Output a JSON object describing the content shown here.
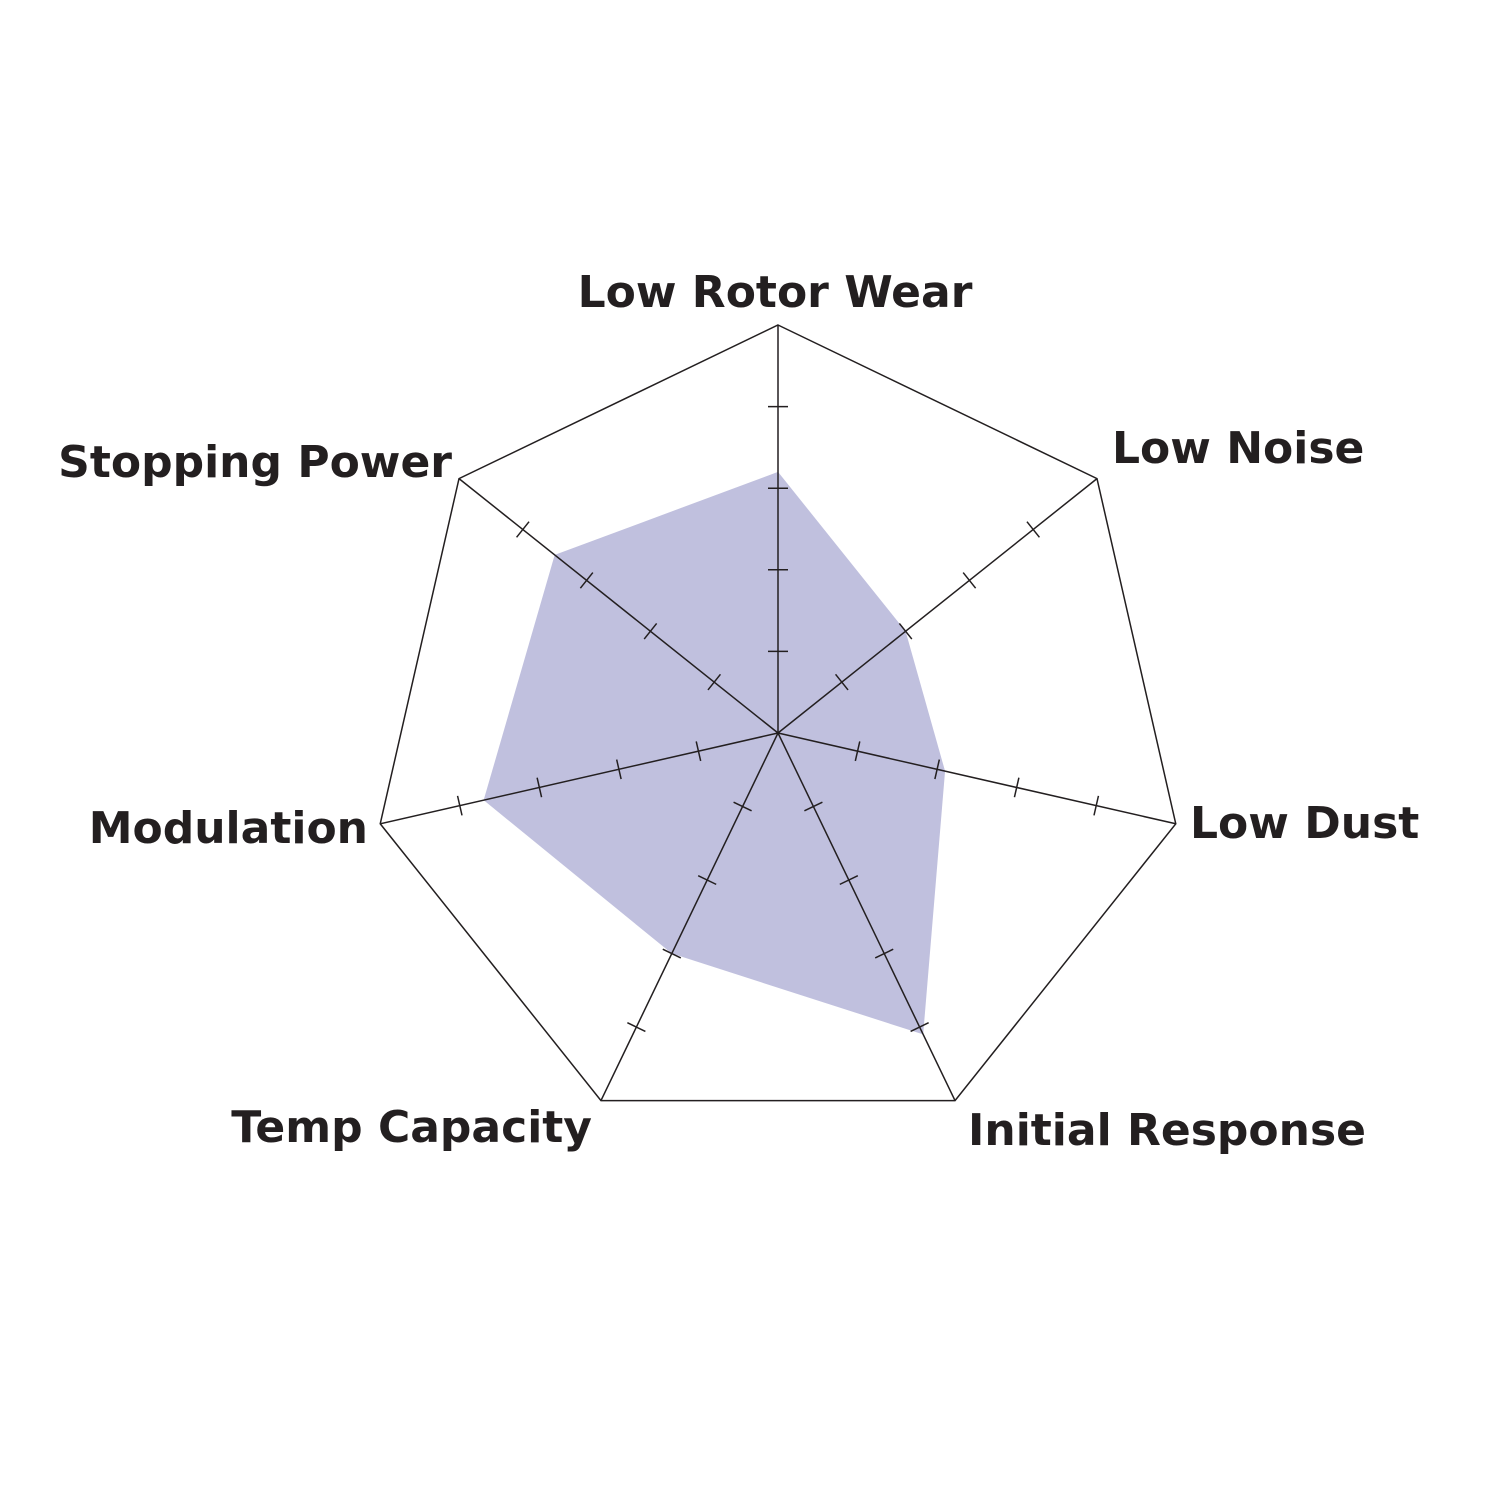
{
  "chart_data": {
    "type": "radar",
    "title": "",
    "axes": [
      "Low Rotor Wear",
      "Low Noise",
      "Low Dust",
      "Initial Response",
      "Temp Capacity",
      "Modulation",
      "Stopping Power"
    ],
    "values": [
      3.2,
      2.0,
      2.1,
      4.1,
      3.0,
      3.7,
      3.5
    ],
    "range": [
      0,
      5
    ],
    "tick_levels": [
      1,
      2,
      3,
      4
    ],
    "colors": {
      "fill": "#c0c0de",
      "lines": "#231f20",
      "text": "#231f20"
    },
    "legend": "none"
  }
}
